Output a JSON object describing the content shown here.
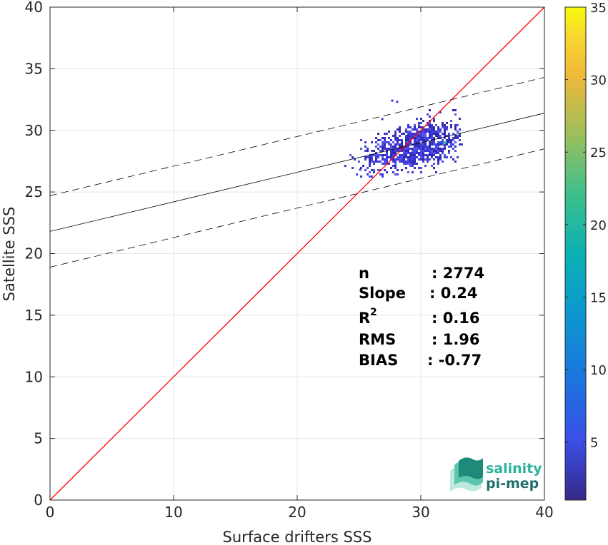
{
  "chart_data": {
    "type": "heatmap",
    "title": "",
    "xlabel": "Surface drifters SSS",
    "ylabel": "Satellite SSS",
    "xlim": [
      0,
      40
    ],
    "ylim": [
      0,
      40
    ],
    "xticks": [
      "0",
      "10",
      "20",
      "30",
      "40"
    ],
    "yticks": [
      "0",
      "5",
      "10",
      "15",
      "20",
      "25",
      "30",
      "35",
      "40"
    ],
    "grid": true,
    "identity_line": {
      "color": "#ff0000",
      "x": [
        0,
        40
      ],
      "y": [
        0,
        40
      ]
    },
    "regression_line": {
      "intercept": 21.8,
      "slope": 0.24,
      "color": "#000000"
    },
    "confidence_lines": {
      "intercepts": [
        24.7,
        18.9
      ],
      "slope": 0.24,
      "style": "dashed",
      "color": "#000000"
    },
    "colorbar": {
      "min": 1,
      "max": 35,
      "ticks": [
        "5",
        "10",
        "15",
        "20",
        "25",
        "30",
        "35"
      ],
      "colormap": "parula"
    },
    "density_cluster": {
      "x_range": [
        23.3,
        33.3
      ],
      "y_range": [
        26.2,
        32.5
      ],
      "center": [
        29.5,
        28.8
      ],
      "peak": [
        31.8,
        29.1
      ],
      "peak_count": 15
    },
    "stats": [
      {
        "label": "n",
        "sup": "",
        "value": ": 2774"
      },
      {
        "label": "Slope",
        "sup": "",
        "value": ": 0.24"
      },
      {
        "label": "R",
        "sup": "2",
        "value": ": 0.16"
      },
      {
        "label": "RMS",
        "sup": "",
        "value": ": 1.96"
      },
      {
        "label": "BIAS",
        "sup": "",
        "value": ": -0.77"
      }
    ]
  },
  "logo": {
    "line1": "salinity",
    "line2": "pi-mep"
  }
}
